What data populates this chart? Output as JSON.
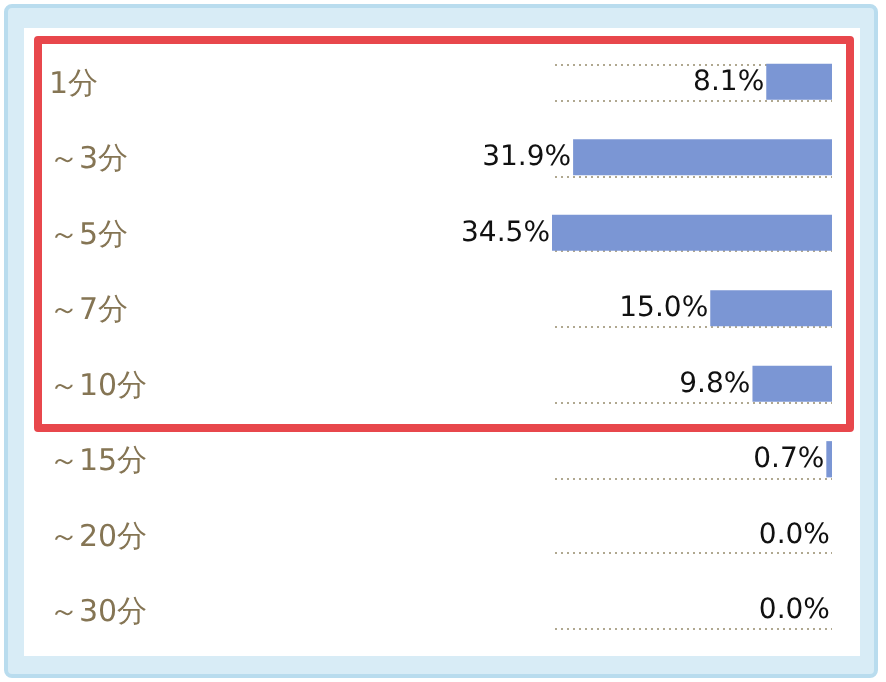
{
  "chart_data": {
    "type": "bar",
    "orientation": "horizontal",
    "categories": [
      "1分",
      "～3分",
      "～5分",
      "～7分",
      "～10分",
      "～15分",
      "～20分",
      "～30分"
    ],
    "values": [
      8.1,
      31.9,
      34.5,
      15.0,
      9.8,
      0.7,
      0.0,
      0.0
    ],
    "value_labels": [
      "8.1%",
      "31.9%",
      "34.5%",
      "15.0%",
      "9.8%",
      "0.7%",
      "0.0%",
      "0.0%"
    ],
    "color": "#7b96d4",
    "grid": "y"
  }
}
